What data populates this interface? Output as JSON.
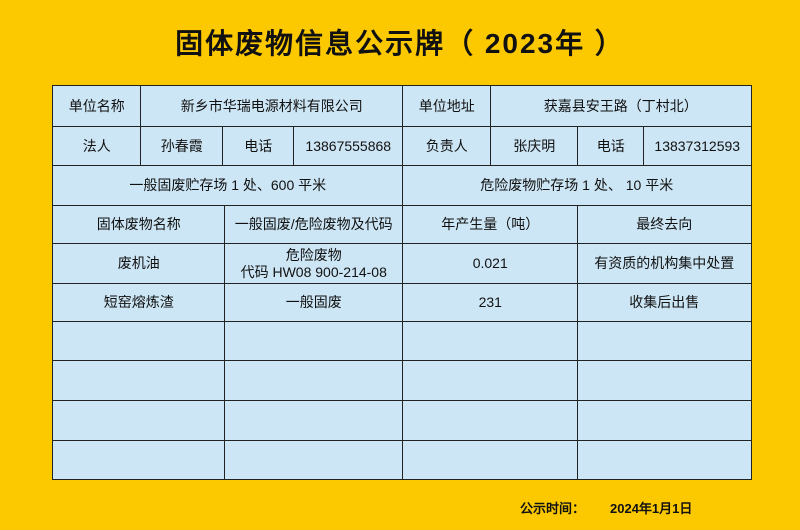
{
  "header": {
    "title": "固体废物信息公示牌（ 2023年 ）"
  },
  "table": {
    "rows": [
      [
        "单位名称",
        "新乡市华瑞电源材料有限公司",
        "单位地址",
        "获嘉县安王路（丁村北）"
      ],
      [
        "法人",
        "孙春霞",
        "电话",
        "13867555868",
        "负责人",
        "张庆明",
        "电话",
        "13837312593"
      ],
      [
        "一般固废贮存场 1 处、600 平米",
        "危险废物贮存场 1 处、 10 平米"
      ],
      [
        "固体废物名称",
        "一般固废/危险废物及代码",
        "年产生量（吨）",
        "最终去向"
      ],
      [
        "废机油",
        "危险废物\n代码 HW08 900-214-08",
        "0.021",
        "有资质的机构集中处置"
      ],
      [
        "短窑熔炼渣",
        "一般固废",
        "231",
        "收集后出售"
      ]
    ]
  },
  "footer": {
    "label": "公示时间：",
    "date": "2024年1月1日"
  }
}
